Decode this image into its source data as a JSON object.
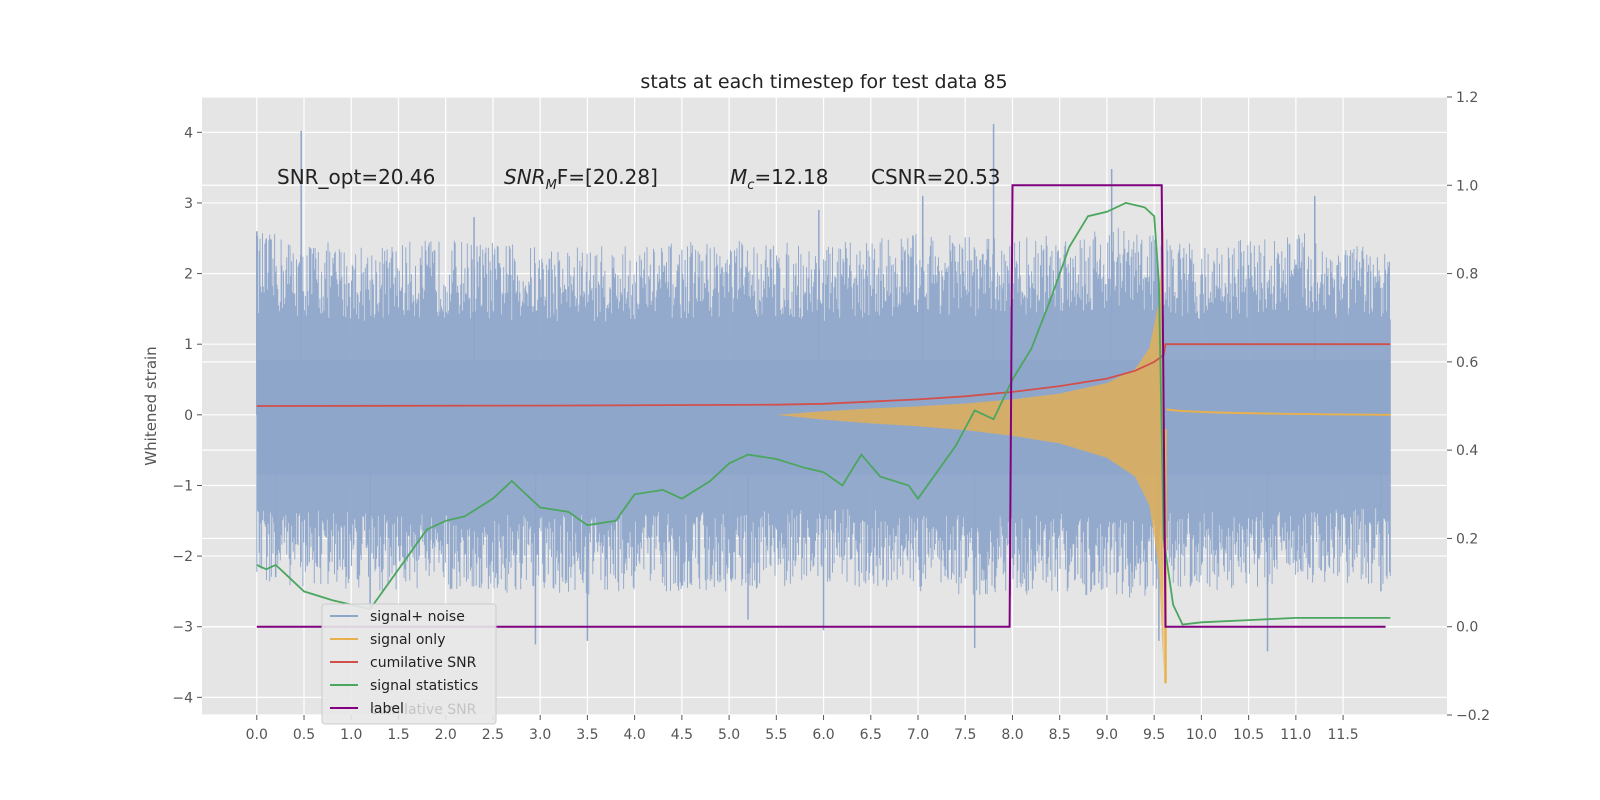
{
  "chart_data": {
    "type": "line",
    "title": "stats at each timestep for test data 85",
    "ylabel": "Whitened strain",
    "ylabel_right": "",
    "xlim": [
      -0.58,
      12.6
    ],
    "ylim": [
      -4.25,
      4.5
    ],
    "ylim_right": [
      -0.2,
      1.2
    ],
    "x_ticks": [
      "0.0",
      "0.5",
      "1.0",
      "1.5",
      "2.0",
      "2.5",
      "3.0",
      "3.5",
      "4.0",
      "4.5",
      "5.0",
      "5.5",
      "6.0",
      "6.5",
      "7.0",
      "7.5",
      "8.0",
      "8.5",
      "9.0",
      "9.5",
      "10.0",
      "10.5",
      "11.0",
      "11.5"
    ],
    "y_ticks": [
      "4",
      "3",
      "2",
      "1",
      "0",
      "−1",
      "−2",
      "−3",
      "−4"
    ],
    "y_ticks_right": [
      "1.2",
      "1.0",
      "0.8",
      "0.6",
      "0.4",
      "0.2",
      "0.0",
      "−0.2"
    ],
    "grid": true,
    "legend_placement": "lower-left",
    "annotations": {
      "snr_opt": "SNR_opt=20.46",
      "snr_mf_main": "SNR",
      "snr_mf_sub": "M",
      "snr_mf_rest": "F=[20.28]",
      "mc_main": "M",
      "mc_sub": "c",
      "mc_rest": "=12.18",
      "csnr": "CSNR=20.53"
    },
    "legend_ghost_text": "cumilative SNR",
    "series": [
      {
        "name": "signal+ noise",
        "axis": "left",
        "color": "#8fa6cb",
        "style": "band",
        "x": [
          0.0,
          1.0,
          2.0,
          3.0,
          4.0,
          5.0,
          6.0,
          7.0,
          8.0,
          8.5,
          9.0,
          9.5,
          9.6,
          10.0,
          11.0,
          12.0
        ],
        "y_upper": [
          2.6,
          2.4,
          2.5,
          2.4,
          2.4,
          2.5,
          2.4,
          2.6,
          2.5,
          2.6,
          2.7,
          2.6,
          2.5,
          2.4,
          2.6,
          2.3
        ],
        "y_lower": [
          -2.4,
          -2.5,
          -2.5,
          -2.6,
          -2.5,
          -2.5,
          -2.4,
          -2.5,
          -2.6,
          -2.5,
          -2.6,
          -2.6,
          -2.5,
          -2.5,
          -2.4,
          -2.4
        ],
        "spikes": [
          {
            "x": 0.0,
            "y": 2.6
          },
          {
            "x": 0.47,
            "y": 4.02
          },
          {
            "x": 0.2,
            "y": -2.3
          },
          {
            "x": 1.2,
            "y": -2.75
          },
          {
            "x": 2.3,
            "y": 2.8
          },
          {
            "x": 2.95,
            "y": -3.25
          },
          {
            "x": 3.5,
            "y": -3.2
          },
          {
            "x": 5.2,
            "y": -2.9
          },
          {
            "x": 5.95,
            "y": 2.9
          },
          {
            "x": 6.0,
            "y": -3.05
          },
          {
            "x": 7.05,
            "y": 3.1
          },
          {
            "x": 7.6,
            "y": -3.3
          },
          {
            "x": 7.8,
            "y": 4.12
          },
          {
            "x": 9.05,
            "y": 3.48
          },
          {
            "x": 9.55,
            "y": -3.2
          },
          {
            "x": 10.7,
            "y": -3.35
          },
          {
            "x": 11.2,
            "y": 3.1
          },
          {
            "x": 11.9,
            "y": -2.5
          }
        ]
      },
      {
        "name": "signal only",
        "axis": "left",
        "color": "#e8b14d",
        "style": "chirp",
        "x": [
          5.5,
          6.0,
          6.5,
          7.0,
          7.5,
          8.0,
          8.5,
          9.0,
          9.3,
          9.45,
          9.55,
          9.6,
          9.63,
          9.7,
          10.0
        ],
        "envelope": [
          0.0,
          0.05,
          0.09,
          0.12,
          0.16,
          0.22,
          0.3,
          0.45,
          0.65,
          0.95,
          1.6,
          2.7,
          -3.8,
          0.2,
          0.02
        ]
      },
      {
        "name": "cumilative SNR",
        "axis": "right",
        "color": "#d1504b",
        "x": [
          0.0,
          3.0,
          5.5,
          6.0,
          7.0,
          7.5,
          8.0,
          8.5,
          9.0,
          9.3,
          9.5,
          9.6,
          9.62,
          12.0
        ],
        "y": [
          0.5,
          0.501,
          0.503,
          0.505,
          0.515,
          0.522,
          0.532,
          0.545,
          0.562,
          0.58,
          0.6,
          0.615,
          0.64,
          0.64
        ]
      },
      {
        "name": "signal statistics",
        "axis": "right",
        "color": "#4ba65f",
        "x": [
          0.0,
          0.1,
          0.2,
          0.3,
          0.5,
          0.8,
          1.0,
          1.2,
          1.5,
          1.8,
          2.0,
          2.2,
          2.5,
          2.7,
          3.0,
          3.3,
          3.5,
          3.8,
          4.0,
          4.3,
          4.5,
          4.8,
          5.0,
          5.2,
          5.5,
          5.8,
          6.0,
          6.2,
          6.4,
          6.6,
          6.9,
          7.0,
          7.2,
          7.4,
          7.6,
          7.8,
          8.0,
          8.2,
          8.4,
          8.6,
          8.8,
          9.0,
          9.2,
          9.4,
          9.5,
          9.55,
          9.6,
          9.7,
          9.8,
          10.0,
          10.5,
          11.0,
          11.5,
          12.0
        ],
        "y": [
          0.14,
          0.13,
          0.14,
          0.12,
          0.08,
          0.06,
          0.05,
          0.04,
          0.13,
          0.22,
          0.24,
          0.25,
          0.29,
          0.33,
          0.27,
          0.26,
          0.23,
          0.24,
          0.3,
          0.31,
          0.29,
          0.33,
          0.37,
          0.39,
          0.38,
          0.36,
          0.35,
          0.32,
          0.39,
          0.34,
          0.32,
          0.29,
          0.35,
          0.41,
          0.49,
          0.47,
          0.56,
          0.63,
          0.74,
          0.86,
          0.93,
          0.94,
          0.96,
          0.95,
          0.93,
          0.78,
          0.2,
          0.05,
          0.005,
          0.01,
          0.015,
          0.02,
          0.02,
          0.02
        ]
      },
      {
        "name": "label",
        "axis": "right",
        "color": "#800080",
        "x": [
          0.0,
          7.95,
          7.97,
          8.0,
          9.55,
          9.58,
          9.62,
          11.95
        ],
        "y": [
          0.0,
          0.0,
          0.0,
          1.0,
          1.0,
          1.0,
          0.0,
          0.0
        ]
      }
    ]
  }
}
